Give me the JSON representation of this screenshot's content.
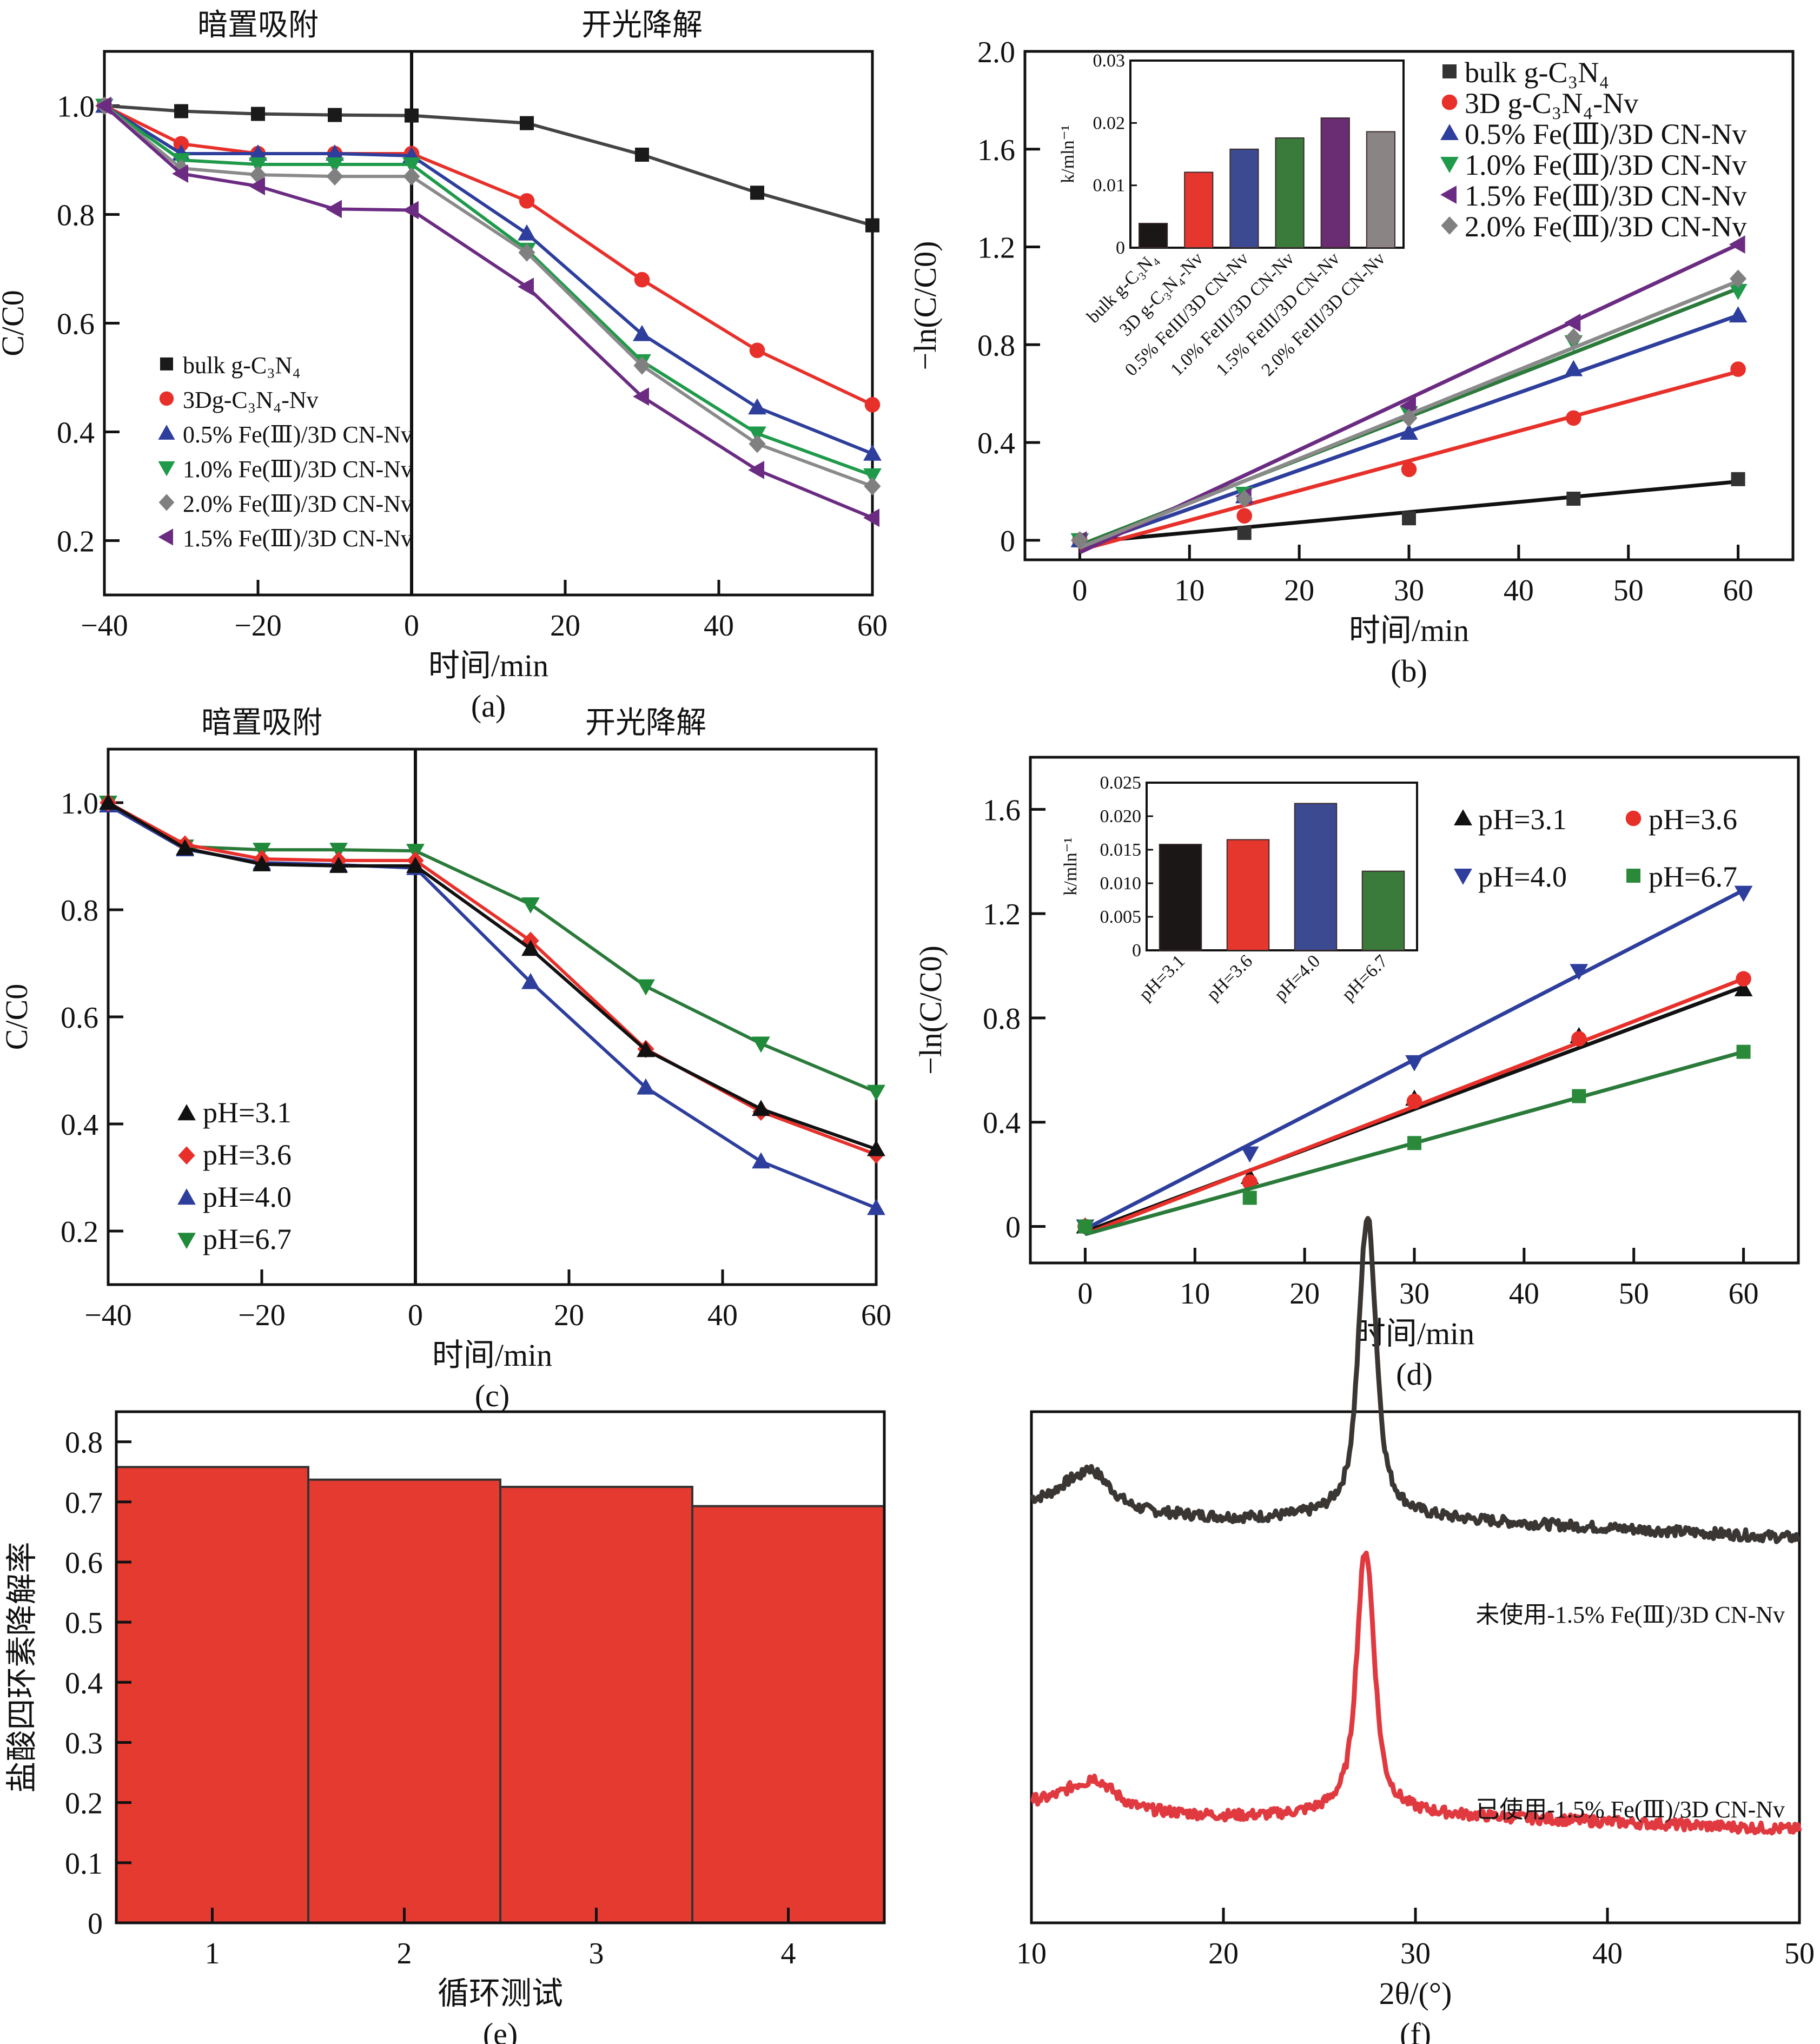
{
  "figure": {
    "panels": [
      "(a)",
      "(b)",
      "(c)",
      "(d)",
      "(e)",
      "(f)"
    ]
  },
  "chart_data": [
    {
      "id": "a",
      "type": "line",
      "panel_label": "(a)",
      "annotations": [
        "暗置吸附",
        "开光降解"
      ],
      "divider_x": 0,
      "xlabel": "时间/min",
      "ylabel": "C/C0",
      "xlim": [
        -40,
        60
      ],
      "ylim": [
        0.1,
        1.1
      ],
      "xticks": [
        -40,
        -20,
        0,
        20,
        40,
        60
      ],
      "xtick_labels": [
        "−40",
        "−20",
        "0",
        "20",
        "40",
        "60"
      ],
      "yticks": [
        0.2,
        0.4,
        0.6,
        0.8,
        1.0
      ],
      "ytick_labels": [
        "0.2",
        "0.4",
        "0.6",
        "0.8",
        "1.0"
      ],
      "legend_position": "lower-left",
      "x": [
        -40,
        -30,
        -20,
        -10,
        0,
        15,
        30,
        45,
        60
      ],
      "series": [
        {
          "name": "bulk g-C3N4",
          "label": "bulk g-C₃N₄",
          "color": "#1a1a1a",
          "line": "#444444",
          "marker": "square",
          "values": [
            1.0,
            0.99,
            0.985,
            0.983,
            0.982,
            0.968,
            0.91,
            0.84,
            0.78
          ]
        },
        {
          "name": "3Dg-C3N4-Nv",
          "label": "3Dg-C₃N₄-Nv",
          "color": "#e8302a",
          "line": "#e8302a",
          "marker": "circle",
          "values": [
            1.0,
            0.93,
            0.912,
            0.912,
            0.912,
            0.825,
            0.68,
            0.55,
            0.45
          ]
        },
        {
          "name": "0.5% Fe(III)/3D CN-Nv",
          "label": "0.5% Fe(Ⅲ)/3D CN-Nv",
          "color": "#2d3e9c",
          "line": "#2d3e9c",
          "marker": "triangle-up",
          "values": [
            1.0,
            0.912,
            0.912,
            0.912,
            0.908,
            0.765,
            0.58,
            0.445,
            0.36
          ]
        },
        {
          "name": "1.0% Fe(III)/3D CN-Nv",
          "label": "1.0% Fe(Ⅲ)/3D CN-Nv",
          "color": "#1f9a4a",
          "line": "#1f9a4a",
          "marker": "triangle-down",
          "values": [
            1.0,
            0.9,
            0.892,
            0.892,
            0.892,
            0.735,
            0.53,
            0.397,
            0.32
          ]
        },
        {
          "name": "2.0% Fe(III)/3D CN-Nv",
          "label": "2.0% Fe(Ⅲ)/3D CN-Nv",
          "color": "#808080",
          "line": "#8a8a8a",
          "marker": "diamond",
          "values": [
            1.0,
            0.885,
            0.873,
            0.87,
            0.87,
            0.73,
            0.522,
            0.378,
            0.3
          ]
        },
        {
          "name": "1.5% Fe(III)/3D CN-Nv",
          "label": "1.5% Fe(Ⅲ)/3D CN-Nv",
          "color": "#6b2b82",
          "line": "#6b2b82",
          "marker": "triangle-left",
          "values": [
            1.0,
            0.875,
            0.852,
            0.81,
            0.808,
            0.667,
            0.465,
            0.33,
            0.242
          ]
        }
      ]
    },
    {
      "id": "b",
      "type": "scatter",
      "panel_label": "(b)",
      "xlabel": "时间/min",
      "ylabel": "−ln(C/C0)",
      "xlim": [
        -5,
        65
      ],
      "ylim": [
        -0.08,
        2.0
      ],
      "xticks": [
        0,
        10,
        20,
        30,
        40,
        50,
        60
      ],
      "xtick_labels": [
        "0",
        "10",
        "20",
        "30",
        "40",
        "50",
        "60"
      ],
      "yticks": [
        0,
        0.4,
        0.8,
        1.2,
        1.6,
        2.0
      ],
      "ytick_labels": [
        "0",
        "0.4",
        "0.8",
        "1.2",
        "1.6",
        "2.0"
      ],
      "legend_position": "top-right",
      "x": [
        0,
        15,
        30,
        45,
        60
      ],
      "series": [
        {
          "name": "bulk g-C3N4",
          "label": "bulk g-C₃N₄",
          "color": "#333333",
          "line": "#111111",
          "marker": "square",
          "values": [
            0,
            0.03,
            0.09,
            0.17,
            0.25
          ],
          "fit": [
            -0.01,
            0.24
          ]
        },
        {
          "name": "3D g-C3N4-Nv",
          "label": "3D g-C₃N₄-Nv",
          "color": "#e8302a",
          "line": "#e8302a",
          "marker": "circle",
          "values": [
            0,
            0.1,
            0.29,
            0.5,
            0.7
          ],
          "fit": [
            -0.04,
            0.69
          ]
        },
        {
          "name": "0.5% Fe(III)/3D CN-Nv",
          "label": "0.5% Fe(Ⅲ)/3D CN-Nv",
          "color": "#2d3e9c",
          "line": "#2d3e9c",
          "marker": "triangle-up",
          "values": [
            0,
            0.18,
            0.44,
            0.7,
            0.92
          ],
          "fit": [
            -0.03,
            0.92
          ]
        },
        {
          "name": "1.0% Fe(III)/3D CN-Nv",
          "label": "1.0% Fe(Ⅲ)/3D CN-Nv",
          "color": "#1f9a4a",
          "line": "#2a7a3a",
          "marker": "triangle-down",
          "values": [
            0,
            0.19,
            0.52,
            0.81,
            1.02
          ],
          "fit": [
            -0.02,
            1.03
          ]
        },
        {
          "name": "1.5% Fe(III)/3D CN-Nv",
          "label": "1.5% Fe(Ⅲ)/3D CN-Nv",
          "color": "#6b2b82",
          "line": "#6b2b82",
          "marker": "triangle-left",
          "values": [
            0,
            0.18,
            0.55,
            0.89,
            1.21
          ],
          "fit": [
            -0.05,
            1.21
          ]
        },
        {
          "name": "2.0% Fe(III)/3D CN-Nv",
          "label": "2.0% Fe(Ⅲ)/3D CN-Nv",
          "color": "#808080",
          "line": "#8a8a8a",
          "marker": "diamond",
          "values": [
            0,
            0.17,
            0.5,
            0.83,
            1.07
          ],
          "fit": [
            -0.03,
            1.06
          ]
        }
      ],
      "inset": {
        "type": "bar",
        "ylabel": "k/mln⁻¹",
        "ylim": [
          0,
          0.03
        ],
        "yticks": [
          0,
          0.01,
          0.02,
          0.03
        ],
        "ytick_labels": [
          "0",
          "0.01",
          "0.02",
          "0.03"
        ],
        "categories": [
          "bulk g-C₃N₄",
          "3D g-C₃N₄-Nv",
          "0.5% FeIII/3D CN-Nv",
          "1.0% FeIII/3D CN-Nv",
          "1.5% FeIII/3D CN-Nv",
          "2.0% FeIII/3D CN-Nv"
        ],
        "values": [
          0.0039,
          0.0121,
          0.0158,
          0.0176,
          0.0208,
          0.0186
        ],
        "colors": [
          "#1a1716",
          "#e5372e",
          "#3c4a92",
          "#3a7a3a",
          "#6a2c72",
          "#8a8584"
        ]
      }
    },
    {
      "id": "c",
      "type": "line",
      "panel_label": "(c)",
      "annotations": [
        "暗置吸附",
        "开光降解"
      ],
      "divider_x": 0,
      "xlabel": "时间/min",
      "ylabel": "C/C0",
      "xlim": [
        -40,
        60
      ],
      "ylim": [
        0.1,
        1.1
      ],
      "xticks": [
        -40,
        -20,
        0,
        20,
        40,
        60
      ],
      "xtick_labels": [
        "−40",
        "−20",
        "0",
        "20",
        "40",
        "60"
      ],
      "yticks": [
        0.2,
        0.4,
        0.6,
        0.8,
        1.0
      ],
      "ytick_labels": [
        "0.2",
        "0.4",
        "0.6",
        "0.8",
        "1.0"
      ],
      "legend_position": "lower-left",
      "x": [
        -40,
        -30,
        -20,
        -10,
        0,
        15,
        30,
        45,
        60
      ],
      "series": [
        {
          "name": "pH=6.7",
          "label": "pH=6.7",
          "color": "#1f8a3a",
          "line": "#2a7a3a",
          "marker": "triangle-down",
          "values": [
            1.0,
            0.918,
            0.912,
            0.912,
            0.91,
            0.81,
            0.657,
            0.55,
            0.46
          ]
        },
        {
          "name": "pH=4.0",
          "label": "pH=4.0",
          "color": "#2d3e9c",
          "line": "#2d3e9c",
          "marker": "triangle-up",
          "values": [
            0.995,
            0.913,
            0.888,
            0.884,
            0.878,
            0.665,
            0.468,
            0.33,
            0.243
          ]
        },
        {
          "name": "pH=3.6",
          "label": "pH=3.6",
          "color": "#e8302a",
          "line": "#e8302a",
          "marker": "diamond",
          "values": [
            1.0,
            0.922,
            0.895,
            0.892,
            0.892,
            0.742,
            0.54,
            0.423,
            0.343
          ]
        },
        {
          "name": "pH=3.1",
          "label": "pH=3.1",
          "color": "#111111",
          "line": "#111111",
          "marker": "triangle-up",
          "values": [
            1.0,
            0.915,
            0.885,
            0.882,
            0.882,
            0.727,
            0.538,
            0.428,
            0.353
          ]
        }
      ],
      "legend_order": [
        "pH=3.1",
        "pH=3.6",
        "pH=4.0",
        "pH=6.7"
      ]
    },
    {
      "id": "d",
      "type": "scatter",
      "panel_label": "(d)",
      "xlabel": "时间/min",
      "ylabel": "−ln(C/C0)",
      "xlim": [
        -5,
        65
      ],
      "ylim": [
        -0.14,
        1.8
      ],
      "xticks": [
        0,
        10,
        20,
        30,
        40,
        50,
        60
      ],
      "xtick_labels": [
        "0",
        "10",
        "20",
        "30",
        "40",
        "50",
        "60"
      ],
      "yticks": [
        0,
        0.4,
        0.8,
        1.2,
        1.6
      ],
      "ytick_labels": [
        "0",
        "0.4",
        "0.8",
        "1.2",
        "1.6"
      ],
      "legend_position": "top-right",
      "x": [
        0,
        15,
        30,
        45,
        60
      ],
      "series": [
        {
          "name": "pH=3.1",
          "label": "pH=3.1",
          "color": "#111111",
          "line": "#111111",
          "marker": "triangle-up",
          "values": [
            0,
            0.19,
            0.49,
            0.73,
            0.91
          ],
          "fit": [
            -0.02,
            0.92
          ]
        },
        {
          "name": "pH=3.6",
          "label": "pH=3.6",
          "color": "#e8302a",
          "line": "#e8302a",
          "marker": "circle",
          "values": [
            0,
            0.17,
            0.48,
            0.72,
            0.95
          ],
          "fit": [
            -0.03,
            0.95
          ]
        },
        {
          "name": "pH=4.0",
          "label": "pH=4.0",
          "color": "#2d3e9c",
          "line": "#2d3e9c",
          "marker": "triangle-down",
          "values": [
            0,
            0.28,
            0.63,
            0.98,
            1.28
          ],
          "fit": [
            -0.01,
            1.29
          ]
        },
        {
          "name": "pH=6.7",
          "label": "pH=6.7",
          "color": "#2a8a3a",
          "line": "#2a7a3a",
          "marker": "square",
          "values": [
            0,
            0.11,
            0.32,
            0.5,
            0.67
          ],
          "fit": [
            -0.03,
            0.67
          ]
        }
      ],
      "inset": {
        "type": "bar",
        "ylabel": "k/mln⁻¹",
        "ylim": [
          0,
          0.025
        ],
        "yticks": [
          0,
          0.005,
          0.01,
          0.015,
          0.02,
          0.025
        ],
        "ytick_labels": [
          "0",
          "0.005",
          "0.010",
          "0.015",
          "0.020",
          "0.025"
        ],
        "categories": [
          "pH=3.1",
          "pH=3.6",
          "pH=4.0",
          "pH=6.7"
        ],
        "values": [
          0.0158,
          0.0165,
          0.0219,
          0.0118
        ],
        "colors": [
          "#1a1716",
          "#e5372e",
          "#3c4a92",
          "#3a7a3a"
        ]
      }
    },
    {
      "id": "e",
      "type": "bar",
      "panel_label": "(e)",
      "xlabel": "循环测试",
      "ylabel": "盐酸四环素降解率",
      "ylim": [
        0,
        0.85
      ],
      "yticks": [
        0,
        0.1,
        0.2,
        0.3,
        0.4,
        0.5,
        0.6,
        0.7,
        0.8
      ],
      "ytick_labels": [
        "0",
        "0.1",
        "0.2",
        "0.3",
        "0.4",
        "0.5",
        "0.6",
        "0.7",
        "0.8"
      ],
      "categories": [
        "1",
        "2",
        "3",
        "4"
      ],
      "values": [
        0.758,
        0.737,
        0.725,
        0.693
      ],
      "color": "#e53a30"
    },
    {
      "id": "f",
      "type": "line",
      "panel_label": "(f)",
      "xlabel": "2θ/(°)",
      "ylabel": "",
      "xlim": [
        10,
        50
      ],
      "xticks": [
        10,
        20,
        30,
        40,
        50
      ],
      "xtick_labels": [
        "10",
        "20",
        "30",
        "40",
        "50"
      ],
      "series": [
        {
          "name": "未使用-1.5% Fe(Ⅲ)/3D CN-Nv",
          "label": "未使用-1.5% Fe(Ⅲ)/3D CN-Nv",
          "color": "#3a3634",
          "peaks": [
            {
              "two_theta": 12.8,
              "intensity": 0.12
            },
            {
              "two_theta": 27.5,
              "intensity": 1.0
            }
          ],
          "baseline_left": 0.44,
          "baseline_right": 0.31
        },
        {
          "name": "已使用-1.5% Fe(Ⅲ)/3D CN-Nv",
          "label": "已使用-1.5% Fe(Ⅲ)/3D CN-Nv",
          "color": "#e03a40",
          "peaks": [
            {
              "two_theta": 13.0,
              "intensity": 0.09
            },
            {
              "two_theta": 27.4,
              "intensity": 0.88
            }
          ],
          "baseline_left": 0.06,
          "baseline_right": -0.04
        }
      ]
    }
  ]
}
